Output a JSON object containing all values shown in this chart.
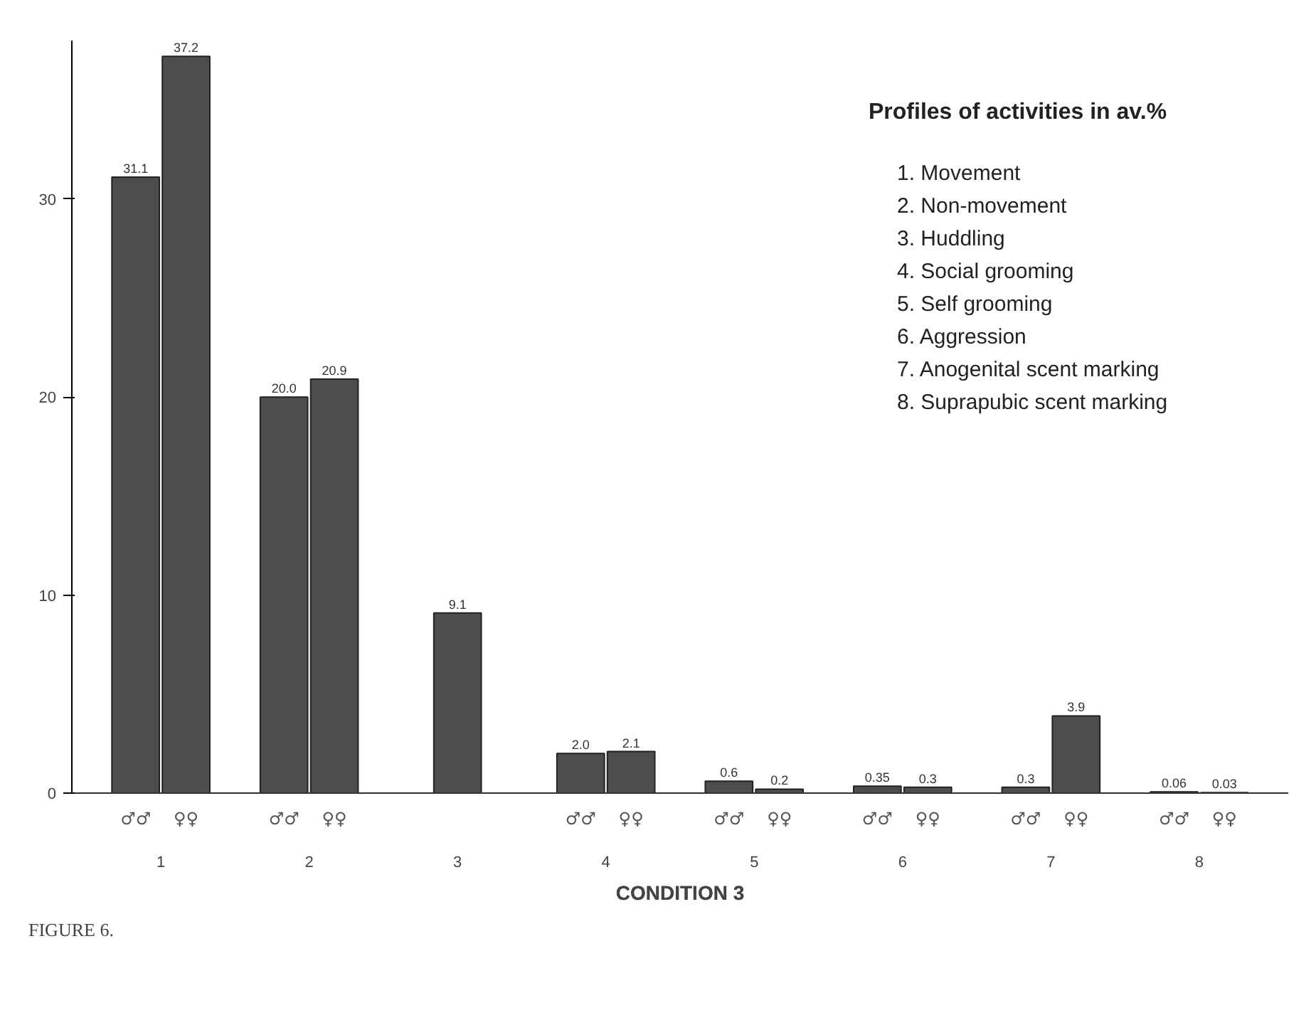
{
  "chart_data": {
    "type": "bar",
    "title": "CONDITION 3",
    "categories": [
      "1",
      "2",
      "3",
      "4",
      "5",
      "6",
      "7",
      "8"
    ],
    "series": [
      {
        "name": "♂♂",
        "color": "#4d4d4d",
        "values": [
          31.1,
          20.0,
          9.1,
          2.0,
          0.6,
          0.35,
          0.3,
          0.06
        ],
        "value_labels": [
          "31.1",
          "20.0",
          "9.1",
          "2.0",
          "0.6",
          "0.35",
          "0.3",
          "0.06"
        ]
      },
      {
        "name": "♀♀",
        "color": "#4d4d4d",
        "values": [
          37.2,
          20.9,
          null,
          2.1,
          0.2,
          0.3,
          3.9,
          0.03
        ],
        "value_labels": [
          "37.2",
          "20.9",
          null,
          "2.1",
          "0.2",
          "0.3",
          "3.9",
          "0.03"
        ]
      }
    ],
    "ylim": [
      0,
      38
    ],
    "yticks": [
      0,
      10,
      20,
      30
    ],
    "grid": false,
    "annotations": [
      "Profiles of activities in av.%",
      "1.  Movement",
      "2.  Non-movement",
      "3.  Huddling",
      "4.  Social grooming",
      "5.  Self grooming",
      "6.  Aggression",
      "7.  Anogenital scent marking",
      "8.  Suprapubic scent marking",
      "FIGURE 6."
    ]
  }
}
